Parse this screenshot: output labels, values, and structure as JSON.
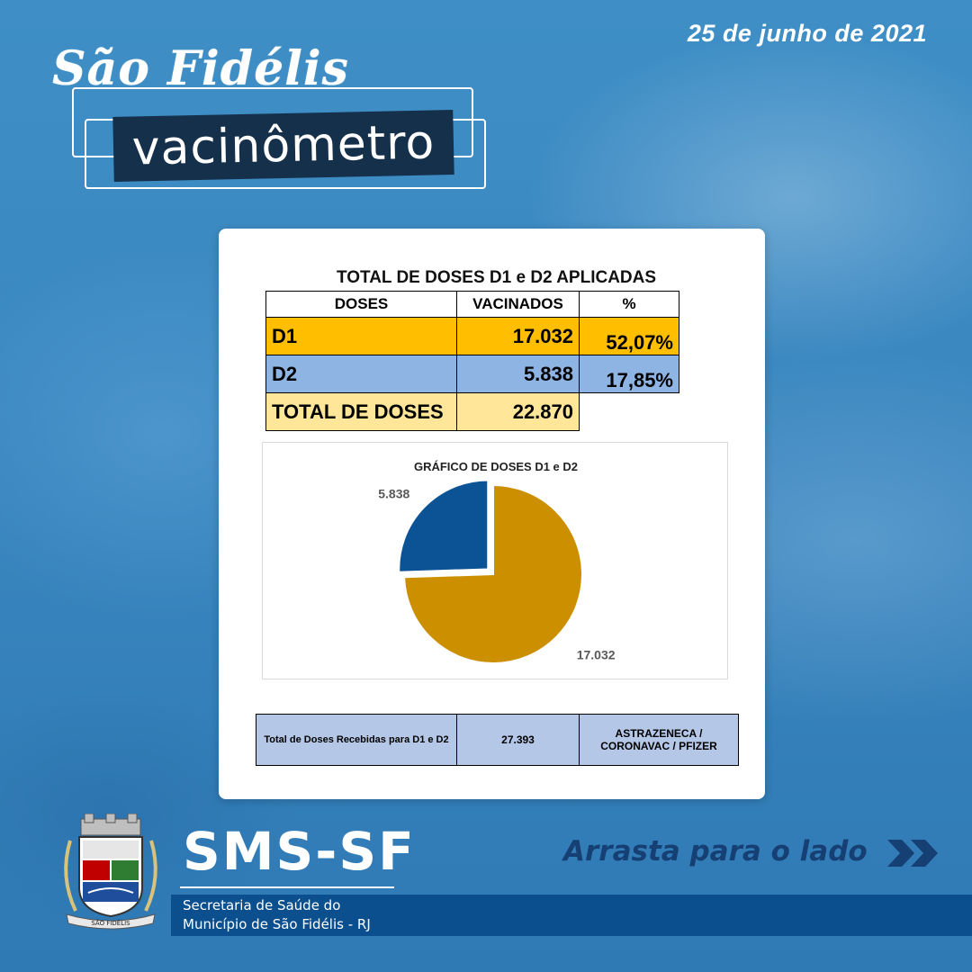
{
  "header": {
    "date": "25 de junho de 2021",
    "city": "São Fidélis",
    "title": "vacinômetro"
  },
  "doses_table": {
    "title": "TOTAL DE DOSES D1 e D2  APLICADAS",
    "columns": [
      "DOSES",
      "VACINADOS",
      "%"
    ],
    "rows": [
      {
        "dose": "D1",
        "vacinados": "17.032",
        "pct": "52,07%",
        "color": "#ffbf00"
      },
      {
        "dose": "D2",
        "vacinados": "5.838",
        "pct": "17,85%",
        "color": "#8eb4e3"
      },
      {
        "dose": "TOTAL DE DOSES",
        "vacinados": "22.870",
        "pct": "",
        "color": "#ffe699"
      }
    ]
  },
  "chart_data": {
    "type": "pie",
    "title": "GRÁFICO DE DOSES D1 e D2",
    "labels": [
      "17.032",
      "5.838"
    ],
    "values": [
      17032,
      5838
    ],
    "colors": [
      "#cc8f00",
      "#0b5394"
    ],
    "exploded": [
      false,
      true
    ]
  },
  "received": {
    "label": "Total de Doses Recebidas  para D1 e D2",
    "value": "27.393",
    "vaccines": "ASTRAZENECA / CORONAVAC / PFIZER"
  },
  "footer": {
    "org": "SMS-SF",
    "secretaria_line1": "Secretaria de Saúde do",
    "secretaria_line2": "Município de São Fidélis - RJ",
    "swipe": "Arrasta para o lado",
    "swipe_icon": "double-chevron-right-icon",
    "crest_text": "SÃO FIDÉLIS"
  }
}
